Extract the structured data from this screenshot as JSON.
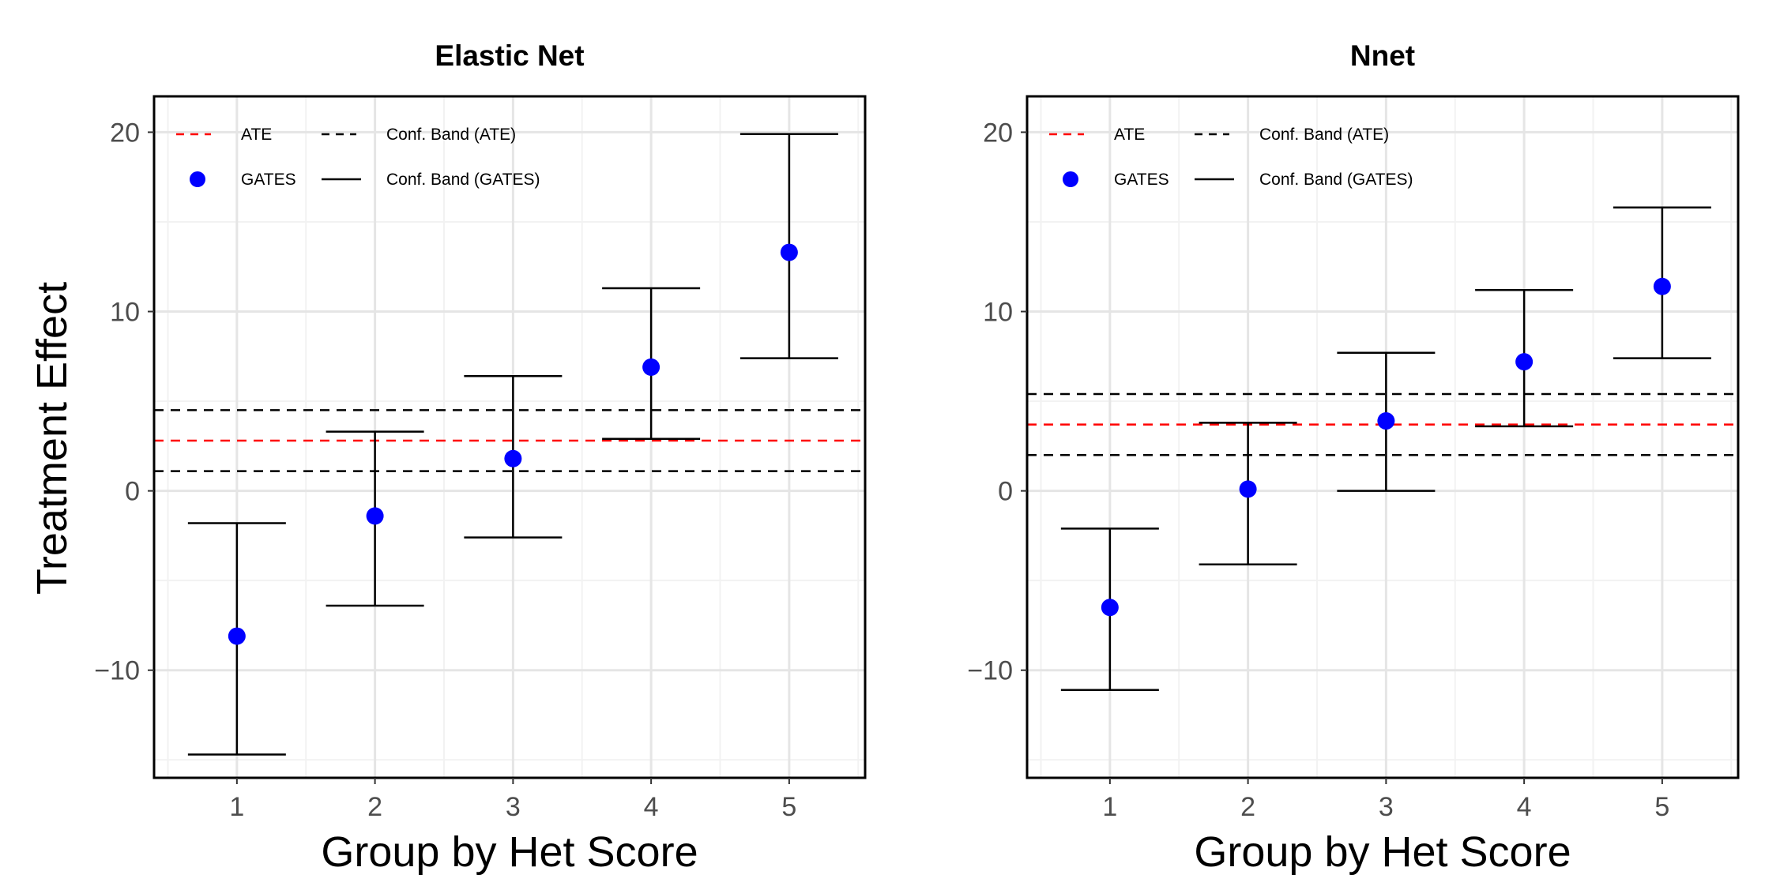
{
  "ylabel": "Treatment Effect",
  "chart_data": [
    {
      "type": "scatter",
      "title": "Elastic Net",
      "xlabel": "Group by Het Score",
      "ylabel": "Treatment Effect",
      "x": [
        1,
        2,
        3,
        4,
        5
      ],
      "xticks": [
        "1",
        "2",
        "3",
        "4",
        "5"
      ],
      "yticks": [
        "−10",
        "0",
        "10",
        "20"
      ],
      "ylim": [
        -16,
        22
      ],
      "xlim": [
        0.4,
        5.55
      ],
      "gates": [
        -8.1,
        -1.4,
        1.8,
        6.9,
        13.3
      ],
      "gates_lower": [
        -14.7,
        -6.4,
        -2.6,
        2.9,
        7.4
      ],
      "gates_upper": [
        -1.8,
        3.3,
        6.4,
        11.3,
        19.9
      ],
      "ate": 2.8,
      "ate_lower": 1.1,
      "ate_upper": 4.5,
      "legend": {
        "ate": "ATE",
        "gates": "GATES",
        "band_ate": "Conf. Band (ATE)",
        "band_gates": "Conf. Band (GATES)"
      },
      "legend_position": "top-left",
      "grid": true
    },
    {
      "type": "scatter",
      "title": "Nnet",
      "xlabel": "Group by Het Score",
      "ylabel": "Treatment Effect",
      "x": [
        1,
        2,
        3,
        4,
        5
      ],
      "xticks": [
        "1",
        "2",
        "3",
        "4",
        "5"
      ],
      "yticks": [
        "−10",
        "0",
        "10",
        "20"
      ],
      "ylim": [
        -16,
        22
      ],
      "xlim": [
        0.4,
        5.55
      ],
      "gates": [
        -6.5,
        0.1,
        3.9,
        7.2,
        11.4
      ],
      "gates_lower": [
        -11.1,
        -4.1,
        0.0,
        3.6,
        7.4
      ],
      "gates_upper": [
        -2.1,
        3.8,
        7.7,
        11.2,
        15.8
      ],
      "ate": 3.7,
      "ate_lower": 2.0,
      "ate_upper": 5.4,
      "legend": {
        "ate": "ATE",
        "gates": "GATES",
        "band_ate": "Conf. Band (ATE)",
        "band_gates": "Conf. Band (GATES)"
      },
      "legend_position": "top-left",
      "grid": true
    }
  ],
  "colors": {
    "ate": "#ff0000",
    "gates": "#0000ff",
    "band": "#000000",
    "grid_major": "#e5e5e5",
    "grid_minor": "#f2f2f2"
  }
}
